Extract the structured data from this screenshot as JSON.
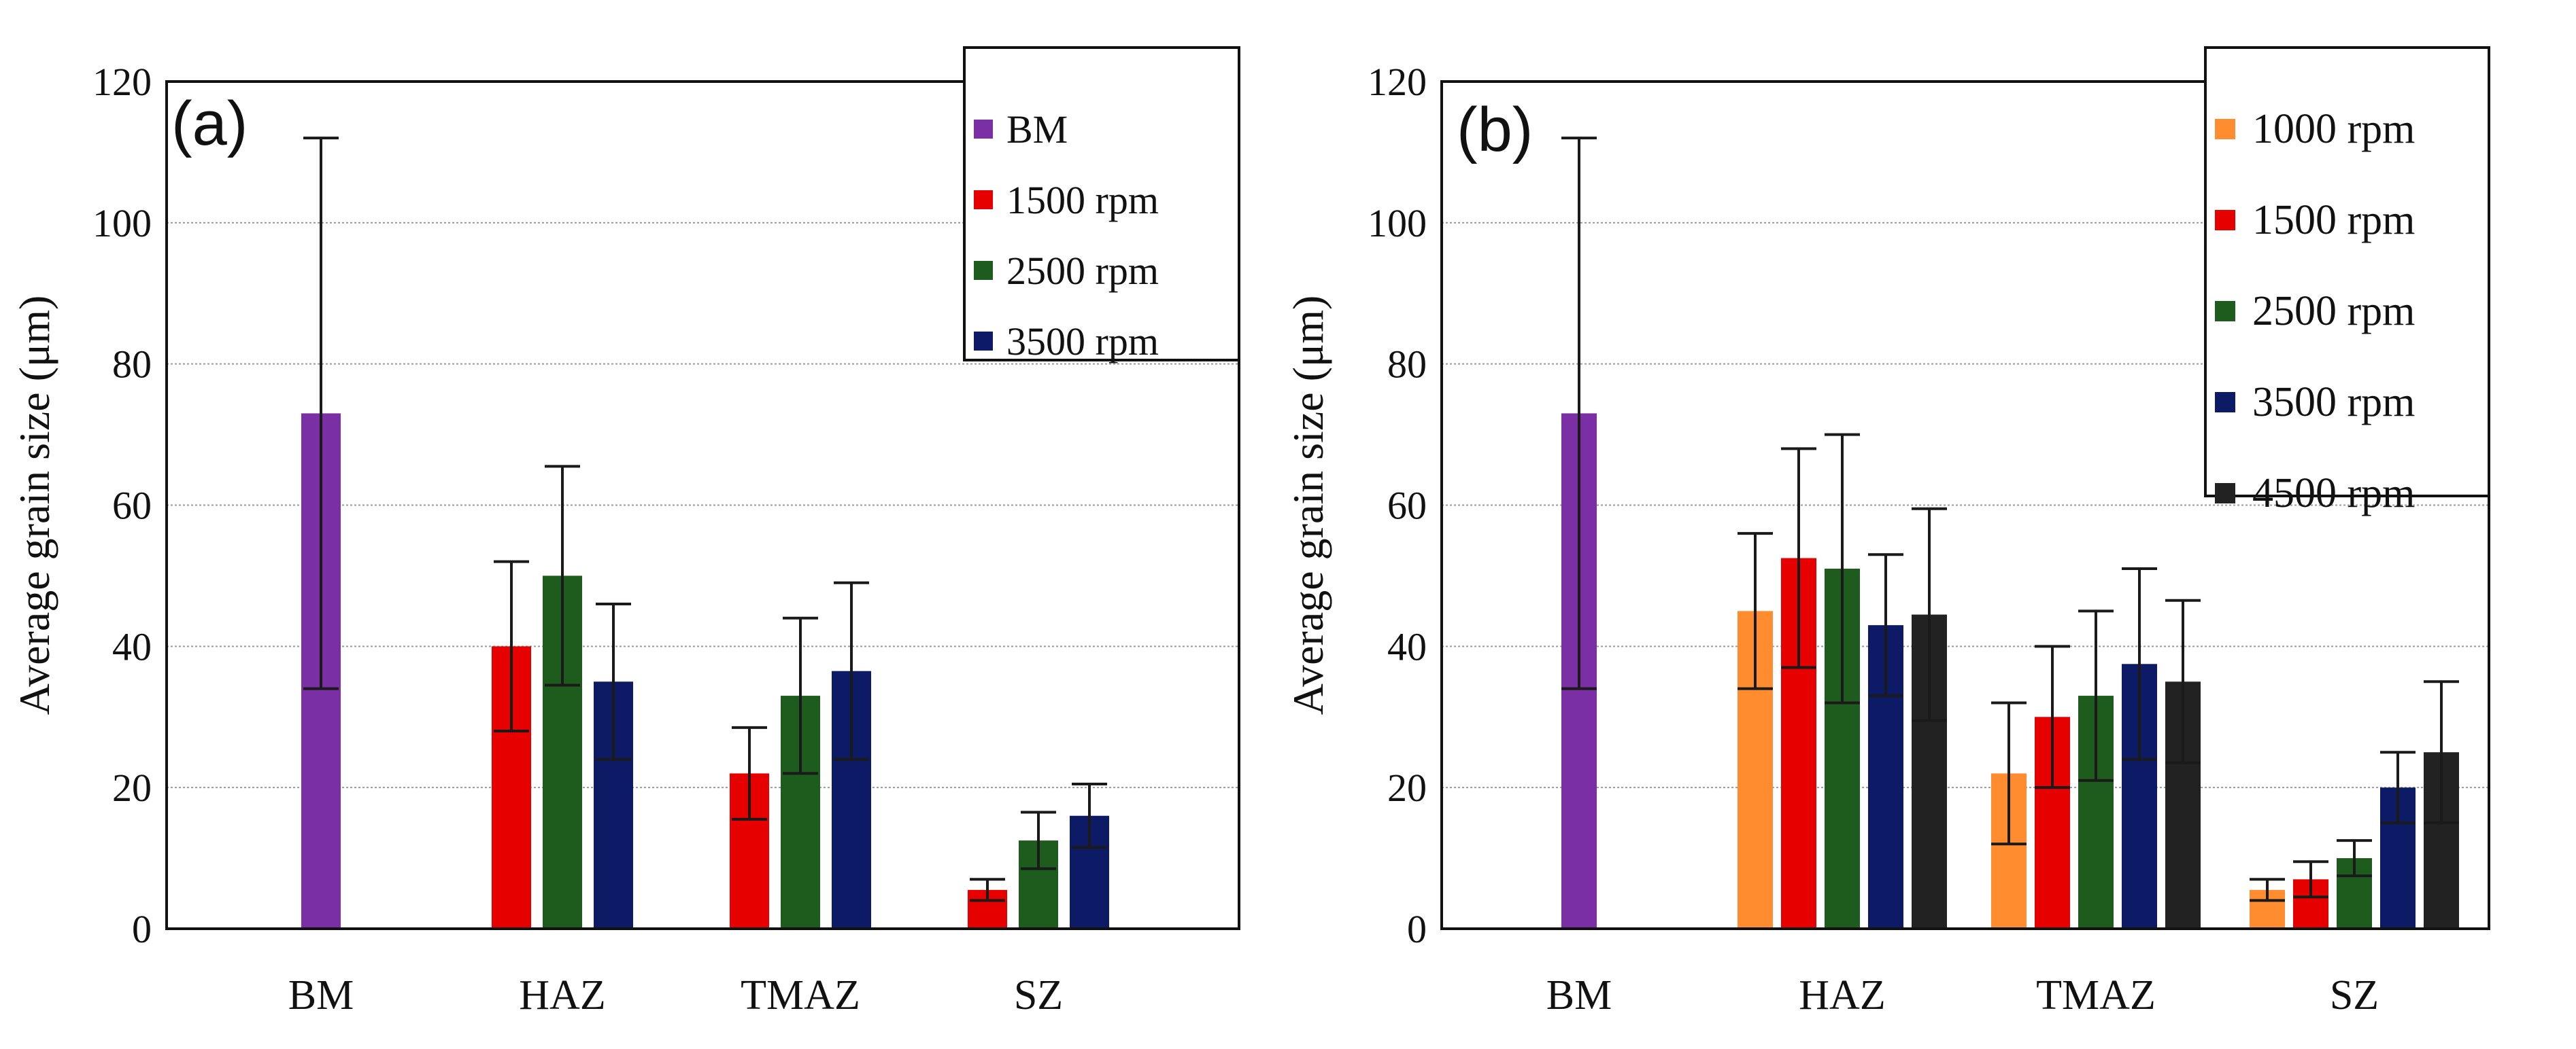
{
  "colors": {
    "BM": "#7b2fa5",
    "1000 rpm": "#ff8c2e",
    "1500 rpm": "#e60000",
    "2500 rpm": "#1e5c1e",
    "3500 rpm": "#0d1a66",
    "4500 rpm": "#222222"
  },
  "chart_data": [
    {
      "type": "bar",
      "panel_label": "(a)",
      "ylabel": "Average grain size (μm)",
      "xlabel": "",
      "ylim": [
        0,
        120
      ],
      "yticks": [
        "0",
        "20",
        "40",
        "60",
        "80",
        "100",
        "120"
      ],
      "grid": true,
      "legend_position": "top-right",
      "categories": [
        "BM",
        "HAZ",
        "TMAZ",
        "SZ"
      ],
      "legend": [
        "BM",
        "1500 rpm",
        "2500 rpm",
        "3500 rpm"
      ],
      "series": [
        {
          "name": "BM",
          "values": [
            73,
            null,
            null,
            null
          ],
          "errors": [
            39,
            null,
            null,
            null
          ]
        },
        {
          "name": "1500 rpm",
          "values": [
            null,
            40,
            22,
            5.5
          ],
          "errors": [
            null,
            12,
            6.5,
            1.5
          ]
        },
        {
          "name": "2500 rpm",
          "values": [
            null,
            50,
            33,
            12.5
          ],
          "errors": [
            null,
            15.5,
            11,
            4
          ]
        },
        {
          "name": "3500 rpm",
          "values": [
            null,
            35,
            36.5,
            16
          ],
          "errors": [
            null,
            11,
            12.5,
            4.5
          ]
        }
      ]
    },
    {
      "type": "bar",
      "panel_label": "(b)",
      "ylabel": "Average grain size (μm)",
      "xlabel": "",
      "ylim": [
        0,
        120
      ],
      "yticks": [
        "0",
        "20",
        "40",
        "60",
        "80",
        "100",
        "120"
      ],
      "grid": true,
      "legend_position": "top-right",
      "categories": [
        "BM",
        "HAZ",
        "TMAZ",
        "SZ"
      ],
      "legend": [
        "1000 rpm",
        "1500 rpm",
        "2500 rpm",
        "3500 rpm",
        "4500 rpm"
      ],
      "series": [
        {
          "name": "BM",
          "values": [
            73,
            null,
            null,
            null
          ],
          "errors": [
            39,
            null,
            null,
            null
          ]
        },
        {
          "name": "1000 rpm",
          "values": [
            null,
            45,
            22,
            5.5
          ],
          "errors": [
            null,
            11,
            10,
            1.5
          ]
        },
        {
          "name": "1500 rpm",
          "values": [
            null,
            52.5,
            30,
            7
          ],
          "errors": [
            null,
            15.5,
            10,
            2.5
          ]
        },
        {
          "name": "2500 rpm",
          "values": [
            null,
            51,
            33,
            10
          ],
          "errors": [
            null,
            19,
            12,
            2.5
          ]
        },
        {
          "name": "3500 rpm",
          "values": [
            null,
            43,
            37.5,
            20
          ],
          "errors": [
            null,
            10,
            13.5,
            5
          ]
        },
        {
          "name": "4500 rpm",
          "values": [
            null,
            44.5,
            35,
            25
          ],
          "errors": [
            null,
            15,
            11.5,
            10
          ]
        }
      ]
    }
  ]
}
